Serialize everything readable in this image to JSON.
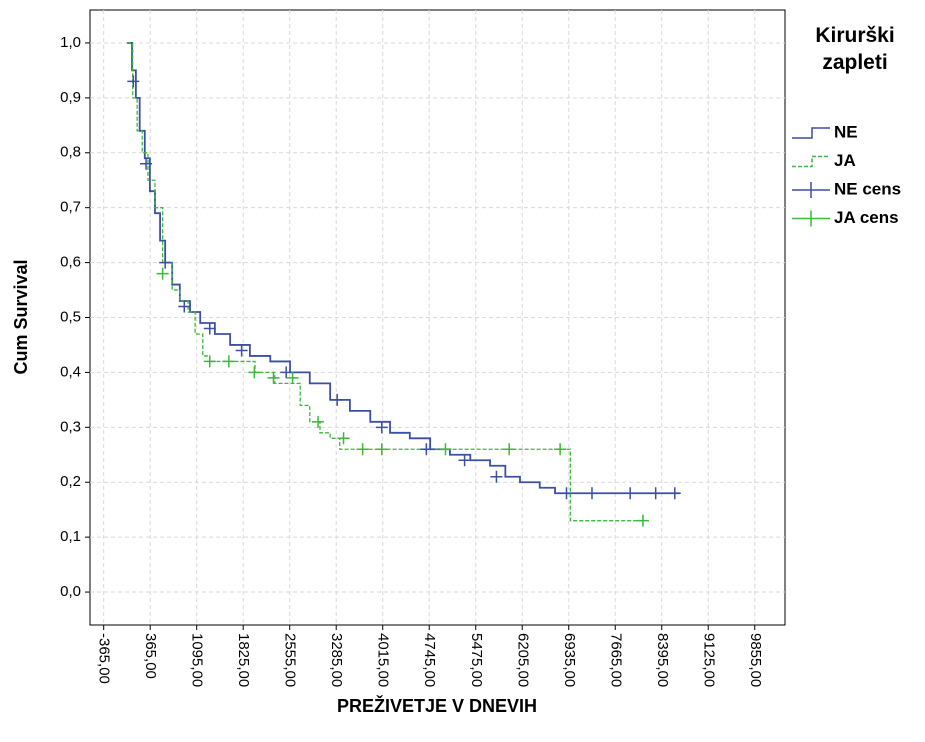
{
  "chart_data": {
    "type": "survival",
    "x_label": "PREŽIVETJE V DNEVIH",
    "y_label": "Cum Survival",
    "legend_title": "Kirurški zapleti",
    "xlim": [
      -580,
      10330
    ],
    "ylim": [
      -0.06,
      1.06
    ],
    "grid": true,
    "xticks": [
      {
        "value": -365,
        "label": "-365,00"
      },
      {
        "value": 365,
        "label": "365,00"
      },
      {
        "value": 1095,
        "label": "1095,00"
      },
      {
        "value": 1825,
        "label": "1825,00"
      },
      {
        "value": 2555,
        "label": "2555,00"
      },
      {
        "value": 3285,
        "label": "3285,00"
      },
      {
        "value": 4015,
        "label": "4015,00"
      },
      {
        "value": 4745,
        "label": "4745,00"
      },
      {
        "value": 5475,
        "label": "5475,00"
      },
      {
        "value": 6205,
        "label": "6205,00"
      },
      {
        "value": 6935,
        "label": "6935,00"
      },
      {
        "value": 7665,
        "label": "7665,00"
      },
      {
        "value": 8395,
        "label": "8395,00"
      },
      {
        "value": 9125,
        "label": "9125,00"
      },
      {
        "value": 9855,
        "label": "9855,00"
      }
    ],
    "yticks": [
      {
        "value": 0,
        "label": "0,0"
      },
      {
        "value": 0.1,
        "label": "0,1"
      },
      {
        "value": 0.2,
        "label": "0,2"
      },
      {
        "value": 0.3,
        "label": "0,3"
      },
      {
        "value": 0.4,
        "label": "0,4"
      },
      {
        "value": 0.5,
        "label": "0,5"
      },
      {
        "value": 0.6,
        "label": "0,6"
      },
      {
        "value": 0.7,
        "label": "0,7"
      },
      {
        "value": 0.8,
        "label": "0,8"
      },
      {
        "value": 0.9,
        "label": "0,9"
      },
      {
        "value": 1,
        "label": "1,0"
      }
    ],
    "series": [
      {
        "name": "NE",
        "color": "#3b4fa6",
        "style": "step",
        "x": [
          0,
          80,
          140,
          200,
          280,
          360,
          440,
          520,
          600,
          710,
          830,
          990,
          1150,
          1380,
          1620,
          1930,
          2250,
          2560,
          2870,
          3190,
          3500,
          3820,
          4130,
          4440,
          4760,
          5070,
          5390,
          5700,
          5940,
          6170,
          6480,
          6720,
          8680
        ],
        "values": [
          1.0,
          0.95,
          0.9,
          0.84,
          0.79,
          0.73,
          0.69,
          0.64,
          0.6,
          0.56,
          0.53,
          0.51,
          0.49,
          0.47,
          0.45,
          0.43,
          0.42,
          0.4,
          0.38,
          0.35,
          0.33,
          0.31,
          0.29,
          0.28,
          0.26,
          0.25,
          0.24,
          0.23,
          0.21,
          0.2,
          0.19,
          0.18,
          0.18
        ]
      },
      {
        "name": "JA",
        "color": "#3cb83c",
        "style": "dashed-step",
        "x": [
          0,
          90,
          160,
          240,
          330,
          440,
          560,
          710,
          830,
          960,
          1070,
          1190,
          1300,
          2010,
          2320,
          2720,
          2870,
          3030,
          3190,
          3340,
          6880,
          6960,
          8130
        ],
        "values": [
          1.0,
          0.9,
          0.84,
          0.8,
          0.75,
          0.7,
          0.6,
          0.55,
          0.53,
          0.51,
          0.47,
          0.43,
          0.42,
          0.4,
          0.38,
          0.34,
          0.31,
          0.29,
          0.28,
          0.26,
          0.26,
          0.13,
          0.13
        ]
      },
      {
        "name": "NE cens",
        "color": "#3b4fa6",
        "style": "censor",
        "x": [
          100,
          300,
          600,
          900,
          1300,
          1800,
          2500,
          3300,
          4000,
          4700,
          5300,
          5800,
          6900,
          7300,
          7900,
          8300,
          8600
        ],
        "values": [
          0.93,
          0.78,
          0.6,
          0.52,
          0.48,
          0.44,
          0.4,
          0.35,
          0.3,
          0.26,
          0.24,
          0.21,
          0.18,
          0.18,
          0.18,
          0.18,
          0.18
        ]
      },
      {
        "name": "JA cens",
        "color": "#3cb83c",
        "style": "censor",
        "x": [
          560,
          1300,
          1600,
          2000,
          2300,
          2600,
          3000,
          3400,
          3700,
          4000,
          5000,
          6000,
          6800,
          8100
        ],
        "values": [
          0.58,
          0.42,
          0.42,
          0.4,
          0.39,
          0.39,
          0.31,
          0.28,
          0.26,
          0.26,
          0.26,
          0.26,
          0.26,
          0.13
        ]
      }
    ]
  }
}
